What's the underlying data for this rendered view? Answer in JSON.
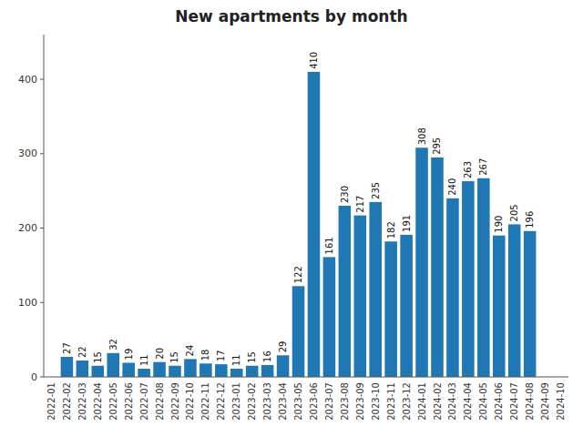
{
  "chart_data": {
    "type": "bar",
    "title": "New apartments by month",
    "categories": [
      "2022-01",
      "2022-02",
      "2022-03",
      "2022-04",
      "2022-05",
      "2022-06",
      "2022-07",
      "2022-08",
      "2022-09",
      "2022-10",
      "2022-11",
      "2022-12",
      "2023-01",
      "2023-02",
      "2023-03",
      "2023-04",
      "2023-05",
      "2023-06",
      "2023-07",
      "2023-08",
      "2023-09",
      "2023-10",
      "2023-11",
      "2023-12",
      "2024-01",
      "2024-02",
      "2024-03",
      "2024-04",
      "2024-05",
      "2024-06",
      "2024-07",
      "2024-08",
      "2024-09",
      "2024-10"
    ],
    "values": [
      0,
      27,
      22,
      15,
      32,
      19,
      11,
      20,
      15,
      24,
      18,
      17,
      11,
      15,
      16,
      29,
      122,
      410,
      161,
      230,
      217,
      235,
      182,
      191,
      308,
      295,
      240,
      263,
      267,
      190,
      205,
      196,
      0,
      0
    ],
    "value_labels": [
      null,
      "27",
      "22",
      "15",
      "32",
      "19",
      "11",
      "20",
      "15",
      "24",
      "18",
      "17",
      "11",
      "15",
      "16",
      "29",
      "122",
      "410",
      "161",
      "230",
      "217",
      "235",
      "182",
      "191",
      "308",
      "295",
      "240",
      "263",
      "267",
      "190",
      "205",
      "196",
      null,
      null
    ],
    "data_labels": true,
    "color": "#1f77b4",
    "ylim": [
      0,
      460
    ],
    "yticks": [
      0,
      100,
      200,
      300,
      400
    ],
    "grid": false
  }
}
